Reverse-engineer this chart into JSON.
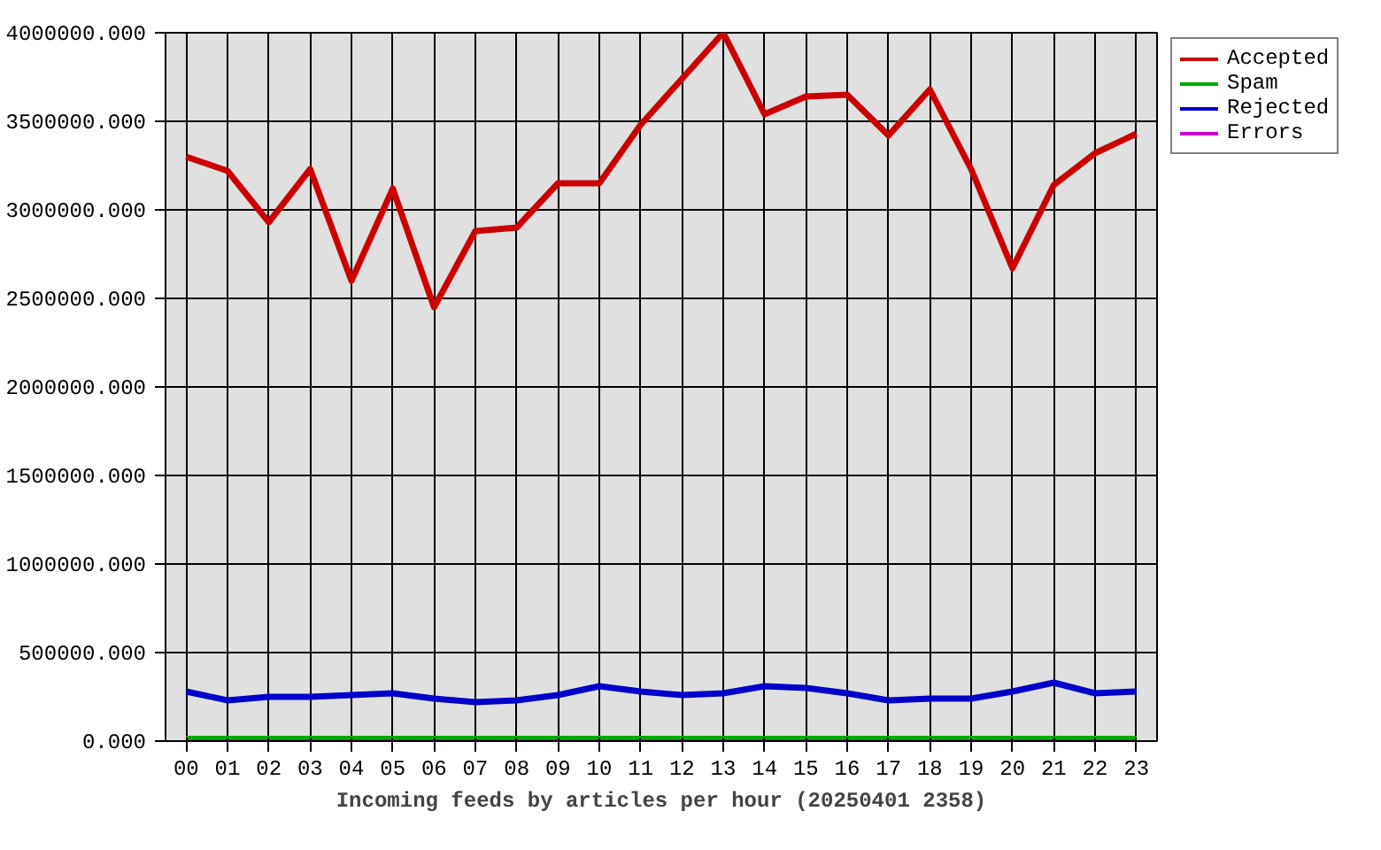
{
  "chart_data": {
    "type": "line",
    "xlabel": "Incoming feeds by articles per hour (20250401 2358)",
    "categories": [
      "00",
      "01",
      "02",
      "03",
      "04",
      "05",
      "06",
      "07",
      "08",
      "09",
      "10",
      "11",
      "12",
      "13",
      "14",
      "15",
      "16",
      "17",
      "18",
      "19",
      "20",
      "21",
      "22",
      "23"
    ],
    "series": [
      {
        "name": "Accepted",
        "color": "#cc0000",
        "values": [
          3300000,
          3220000,
          2930000,
          3230000,
          2600000,
          3120000,
          2450000,
          2880000,
          2900000,
          3150000,
          3150000,
          3480000,
          3740000,
          4000000,
          3540000,
          3640000,
          3650000,
          3420000,
          3680000,
          3230000,
          2670000,
          3140000,
          3320000,
          3430000
        ]
      },
      {
        "name": "Spam",
        "color": "#00aa00",
        "values": [
          0,
          0,
          0,
          0,
          0,
          0,
          0,
          0,
          0,
          0,
          0,
          0,
          0,
          0,
          0,
          0,
          0,
          0,
          0,
          0,
          0,
          0,
          0,
          0
        ]
      },
      {
        "name": "Rejected",
        "color": "#0000cc",
        "values": [
          280000,
          230000,
          250000,
          250000,
          260000,
          270000,
          240000,
          220000,
          230000,
          260000,
          310000,
          280000,
          260000,
          270000,
          310000,
          300000,
          270000,
          230000,
          240000,
          240000,
          280000,
          330000,
          270000,
          280000
        ]
      },
      {
        "name": "Errors",
        "color": "#cc00cc",
        "values": [
          0,
          0,
          0,
          0,
          0,
          0,
          0,
          0,
          0,
          0,
          0,
          0,
          0,
          0,
          0,
          0,
          0,
          0,
          0,
          0,
          0,
          0,
          0,
          0
        ]
      }
    ],
    "ylim": [
      0,
      4000000
    ],
    "yticks": [
      {
        "value": 0,
        "label": "0.000"
      },
      {
        "value": 500000,
        "label": "500000.000"
      },
      {
        "value": 1000000,
        "label": "1000000.000"
      },
      {
        "value": 1500000,
        "label": "1500000.000"
      },
      {
        "value": 2000000,
        "label": "2000000.000"
      },
      {
        "value": 2500000,
        "label": "2500000.000"
      },
      {
        "value": 3000000,
        "label": "3000000.000"
      },
      {
        "value": 3500000,
        "label": "3500000.000"
      },
      {
        "value": 4000000,
        "label": "4000000.000"
      }
    ],
    "grid": true,
    "legend": "top right"
  }
}
